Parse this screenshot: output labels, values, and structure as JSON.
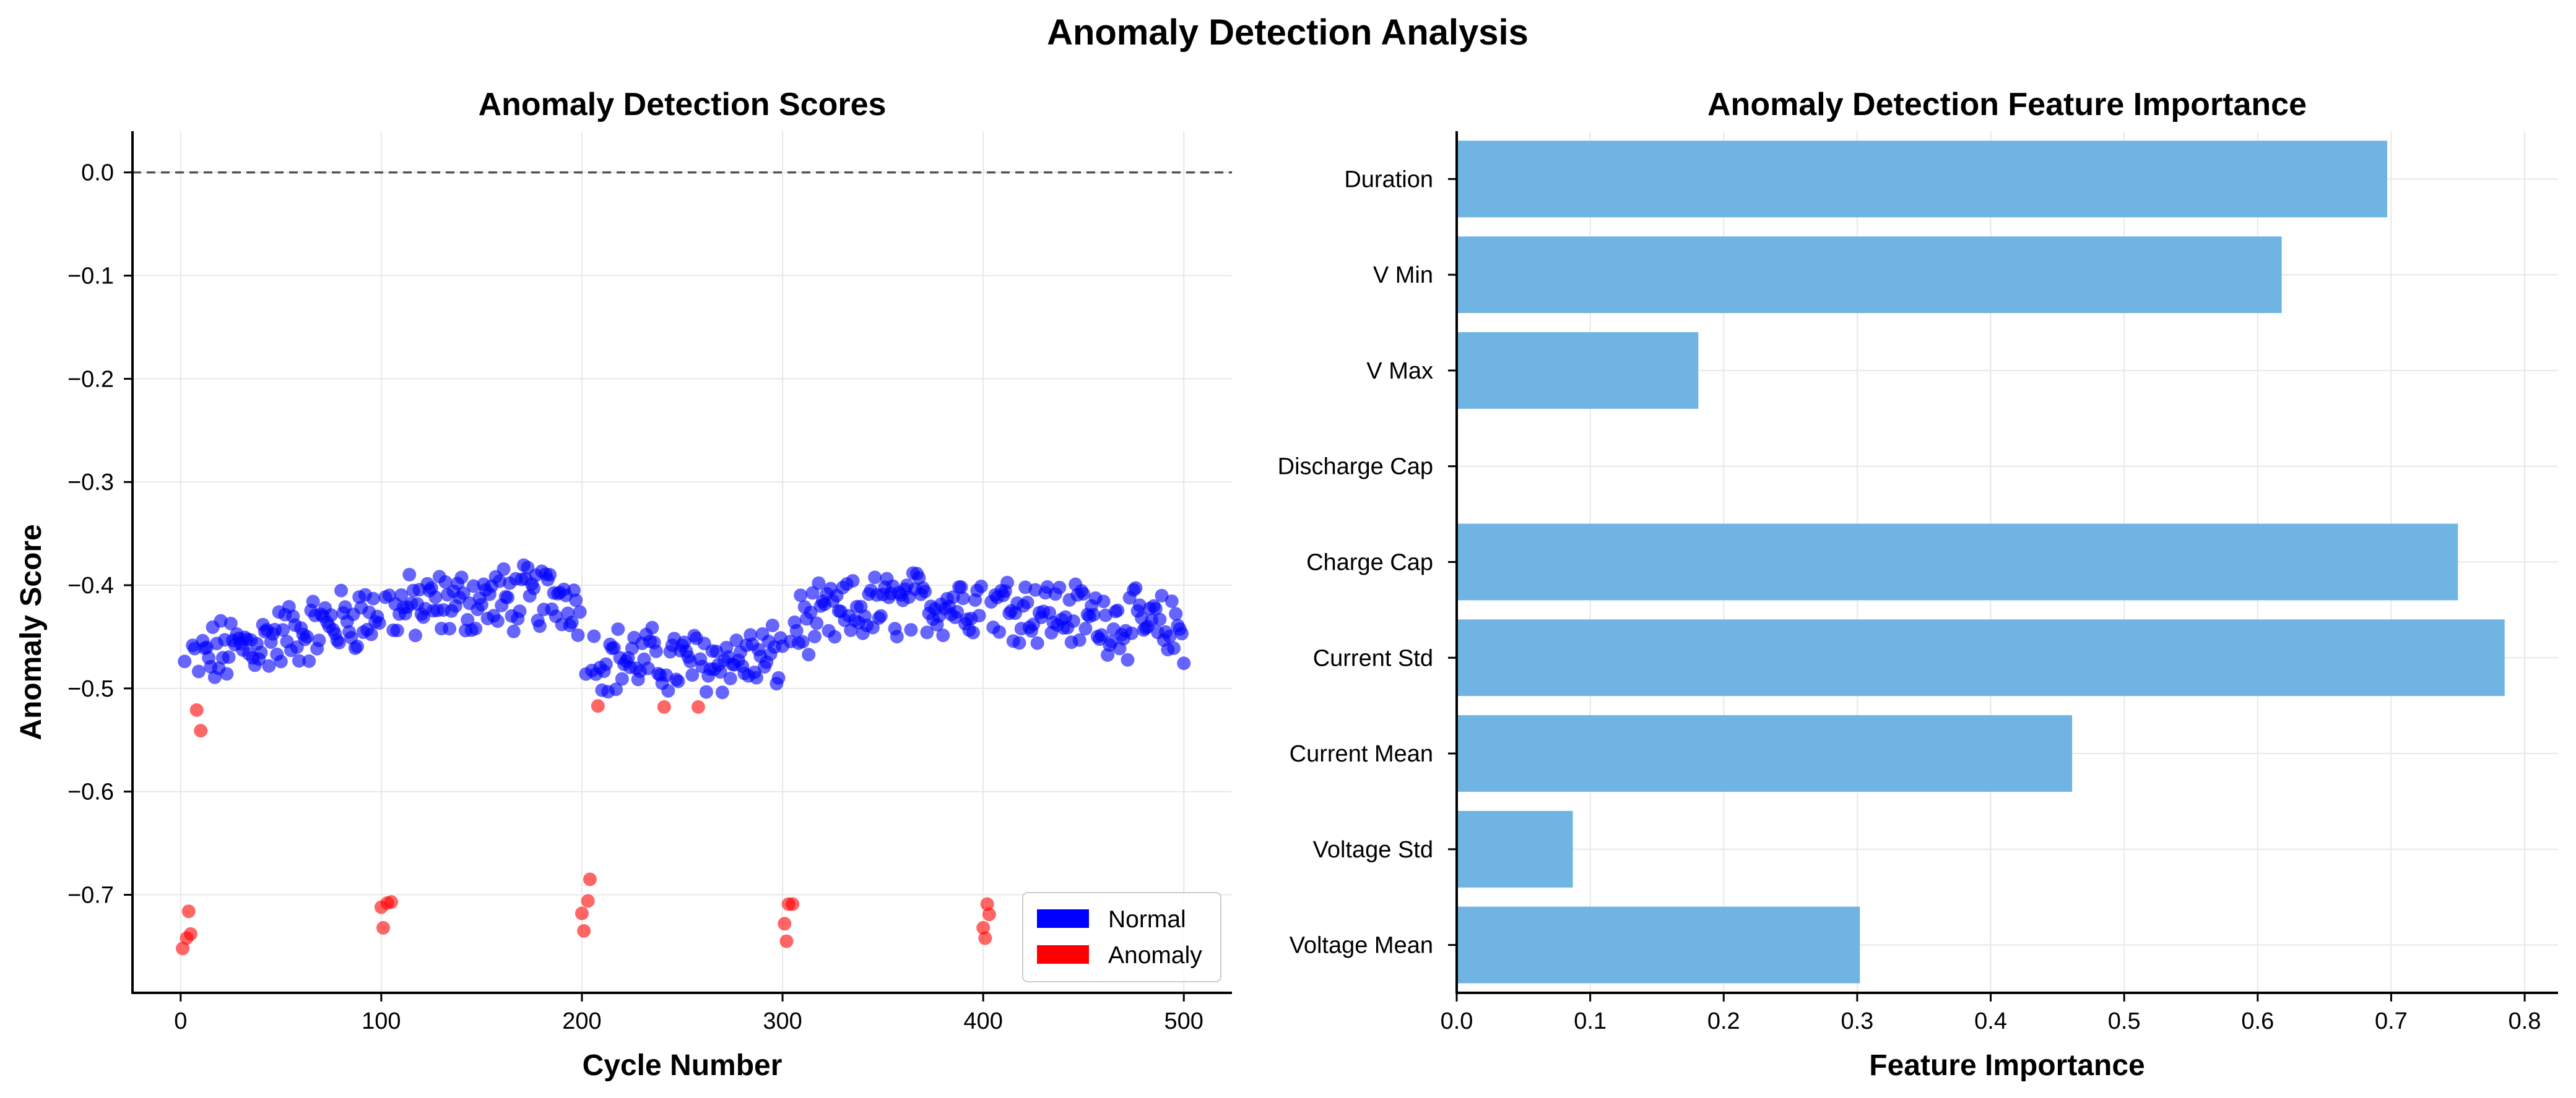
{
  "figure": {
    "title": "Anomaly Detection Analysis"
  },
  "colors": {
    "normal": "#0000ff",
    "anomaly": "#ff0000",
    "bar": "#6fb4e2",
    "grid": "#e8e8e8",
    "axis": "#000000",
    "zero_line": "#555555"
  },
  "chart_data": [
    {
      "type": "scatter",
      "title": "Anomaly Detection Scores",
      "xlabel": "Cycle Number",
      "ylabel": "Anomaly Score",
      "xlim": [
        -24,
        524
      ],
      "ylim": [
        -0.795,
        0.04
      ],
      "xticks": [
        0,
        100,
        200,
        300,
        400,
        500
      ],
      "yticks": [
        0.0,
        -0.1,
        -0.2,
        -0.3,
        -0.4,
        -0.5,
        -0.6,
        -0.7
      ],
      "ytick_labels": [
        "0.0",
        "−0.1",
        "−0.2",
        "−0.3",
        "−0.4",
        "−0.5",
        "−0.6",
        "−0.7"
      ],
      "reference_line": {
        "y": 0.0,
        "style": "dashed"
      },
      "grid": true,
      "legend": {
        "position": "lower-right",
        "entries": [
          "Normal",
          "Anomaly"
        ]
      },
      "series": [
        {
          "name": "Normal",
          "color": "#0000ff",
          "description": "Normal cycles, scores approximately -0.39 to -0.51 in three bands (cycles ~0-200 rising from -0.48 to -0.41, ~200-300 near -0.47, ~300-500 near -0.43)",
          "band_curve": [
            [
              0,
              -0.48
            ],
            [
              20,
              -0.465
            ],
            [
              50,
              -0.45
            ],
            [
              100,
              -0.425
            ],
            [
              150,
              -0.415
            ],
            [
              195,
              -0.41
            ],
            [
              205,
              -0.47
            ],
            [
              250,
              -0.475
            ],
            [
              299,
              -0.47
            ],
            [
              305,
              -0.44
            ],
            [
              350,
              -0.42
            ],
            [
              400,
              -0.415
            ],
            [
              450,
              -0.43
            ],
            [
              500,
              -0.445
            ]
          ],
          "count": 470
        },
        {
          "name": "Anomaly",
          "color": "#ff0000",
          "points": [
            [
              1,
              -0.752
            ],
            [
              3,
              -0.742
            ],
            [
              4,
              -0.716
            ],
            [
              5,
              -0.738
            ],
            [
              8,
              -0.521
            ],
            [
              10,
              -0.541
            ],
            [
              100,
              -0.712
            ],
            [
              101,
              -0.732
            ],
            [
              103,
              -0.708
            ],
            [
              105,
              -0.707
            ],
            [
              200,
              -0.718
            ],
            [
              201,
              -0.735
            ],
            [
              203,
              -0.706
            ],
            [
              204,
              -0.685
            ],
            [
              208,
              -0.517
            ],
            [
              241,
              -0.518
            ],
            [
              258,
              -0.518
            ],
            [
              301,
              -0.728
            ],
            [
              302,
              -0.745
            ],
            [
              303,
              -0.709
            ],
            [
              305,
              -0.709
            ],
            [
              400,
              -0.732
            ],
            [
              401,
              -0.742
            ],
            [
              402,
              -0.709
            ],
            [
              403,
              -0.719
            ]
          ]
        }
      ]
    },
    {
      "type": "bar",
      "orientation": "horizontal",
      "title": "Anomaly Detection Feature Importance",
      "xlabel": "Feature Importance",
      "ylabel": "",
      "xlim": [
        0,
        0.825
      ],
      "xticks": [
        0.0,
        0.1,
        0.2,
        0.3,
        0.4,
        0.5,
        0.6,
        0.7,
        0.8
      ],
      "xtick_labels": [
        "0.0",
        "0.1",
        "0.2",
        "0.3",
        "0.4",
        "0.5",
        "0.6",
        "0.7",
        "0.8"
      ],
      "grid": true,
      "categories": [
        "Duration",
        "V Min",
        "V Max",
        "Discharge Cap",
        "Charge Cap",
        "Current Std",
        "Current Mean",
        "Voltage Std",
        "Voltage Mean"
      ],
      "values": [
        0.697,
        0.618,
        0.181,
        0.0,
        0.75,
        0.785,
        0.461,
        0.087,
        0.302
      ]
    }
  ]
}
